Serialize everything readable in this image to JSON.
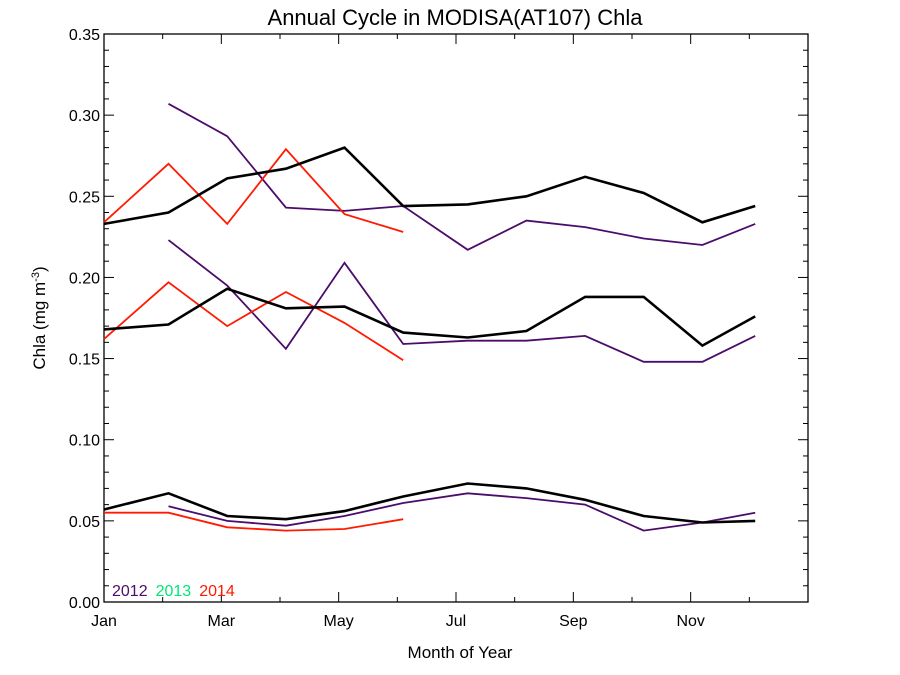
{
  "chart_data": {
    "type": "line",
    "title": "Annual Cycle in MODISA(AT107) Chla",
    "xlabel": "Month of Year",
    "ylabel": "Chla (mg m",
    "ylabel_sup": "-3",
    "ylabel_tail": ")",
    "xlim": [
      1,
      13
    ],
    "ylim": [
      0,
      0.35
    ],
    "x_ticks": [
      {
        "x": 1,
        "label": "Jan"
      },
      {
        "x": 3,
        "label": "Mar"
      },
      {
        "x": 5,
        "label": "May"
      },
      {
        "x": 7,
        "label": "Jul"
      },
      {
        "x": 9,
        "label": "Sep"
      },
      {
        "x": 11,
        "label": "Nov"
      }
    ],
    "y_ticks": [
      {
        "y": 0.0,
        "label": "0.00"
      },
      {
        "y": 0.05,
        "label": "0.05"
      },
      {
        "y": 0.1,
        "label": "0.10"
      },
      {
        "y": 0.15,
        "label": "0.15"
      },
      {
        "y": 0.2,
        "label": "0.20"
      },
      {
        "y": 0.25,
        "label": "0.25"
      },
      {
        "y": 0.3,
        "label": "0.30"
      },
      {
        "y": 0.35,
        "label": "0.35"
      }
    ],
    "grid": false,
    "legend_position": "bottom-left",
    "legend": [
      {
        "label": "2012",
        "color": "#4b0c6b"
      },
      {
        "label": "2013",
        "color": "#00e676"
      },
      {
        "label": "2014",
        "color": "#ff1a00"
      }
    ],
    "series": [
      {
        "group": "climatology",
        "color": "#000000",
        "x": [
          1,
          2.1,
          3.1,
          4.1,
          5.1,
          6.1,
          7.2,
          8.2,
          9.2,
          10.2,
          11.2,
          12.1
        ],
        "y": [
          0.233,
          0.24,
          0.261,
          0.267,
          0.28,
          0.244,
          0.245,
          0.25,
          0.262,
          0.252,
          0.234,
          0.244
        ]
      },
      {
        "group": "climatology",
        "color": "#000000",
        "x": [
          1,
          2.1,
          3.1,
          4.1,
          5.1,
          6.1,
          7.2,
          8.2,
          9.2,
          10.2,
          11.2,
          12.1
        ],
        "y": [
          0.168,
          0.171,
          0.193,
          0.181,
          0.182,
          0.166,
          0.163,
          0.167,
          0.188,
          0.188,
          0.158,
          0.176
        ]
      },
      {
        "group": "climatology",
        "color": "#000000",
        "x": [
          1,
          2.1,
          3.1,
          4.1,
          5.1,
          6.1,
          7.2,
          8.2,
          9.2,
          10.2,
          11.2,
          12.1
        ],
        "y": [
          0.057,
          0.067,
          0.053,
          0.051,
          0.056,
          0.065,
          0.073,
          0.07,
          0.063,
          0.053,
          0.049,
          0.05
        ]
      },
      {
        "name": "2012",
        "color": "#4b0c6b",
        "x": [
          2.1,
          3.1,
          4.1,
          5.1,
          6.1,
          7.2,
          8.2,
          9.2,
          10.2,
          11.2,
          12.1
        ],
        "y": [
          0.307,
          0.287,
          0.243,
          0.241,
          0.244,
          0.217,
          0.235,
          0.231,
          0.224,
          0.22,
          0.233
        ]
      },
      {
        "name": "2012",
        "color": "#4b0c6b",
        "x": [
          2.1,
          3.1,
          4.1,
          5.1,
          6.1,
          7.2,
          8.2,
          9.2,
          10.2,
          11.2,
          12.1
        ],
        "y": [
          0.223,
          0.195,
          0.156,
          0.209,
          0.159,
          0.161,
          0.161,
          0.164,
          0.148,
          0.148,
          0.164
        ]
      },
      {
        "name": "2012",
        "color": "#4b0c6b",
        "x": [
          2.1,
          3.1,
          4.1,
          5.1,
          6.1,
          7.2,
          8.2,
          9.2,
          10.2,
          11.2,
          12.1
        ],
        "y": [
          0.059,
          0.05,
          0.047,
          0.053,
          0.061,
          0.067,
          0.064,
          0.06,
          0.044,
          0.049,
          0.055
        ]
      },
      {
        "name": "2014",
        "color": "#ff1a00",
        "x": [
          1,
          2.1,
          3.1,
          4.1,
          5.1,
          6.1
        ],
        "y": [
          0.234,
          0.27,
          0.233,
          0.279,
          0.239,
          0.228
        ]
      },
      {
        "name": "2014",
        "color": "#ff1a00",
        "x": [
          1,
          2.1,
          3.1,
          4.1,
          5.1,
          6.1
        ],
        "y": [
          0.162,
          0.197,
          0.17,
          0.191,
          0.172,
          0.149
        ]
      },
      {
        "name": "2014",
        "color": "#ff1a00",
        "x": [
          1,
          2.1,
          3.1,
          4.1,
          5.1,
          6.1
        ],
        "y": [
          0.055,
          0.055,
          0.046,
          0.044,
          0.045,
          0.051
        ]
      }
    ]
  }
}
